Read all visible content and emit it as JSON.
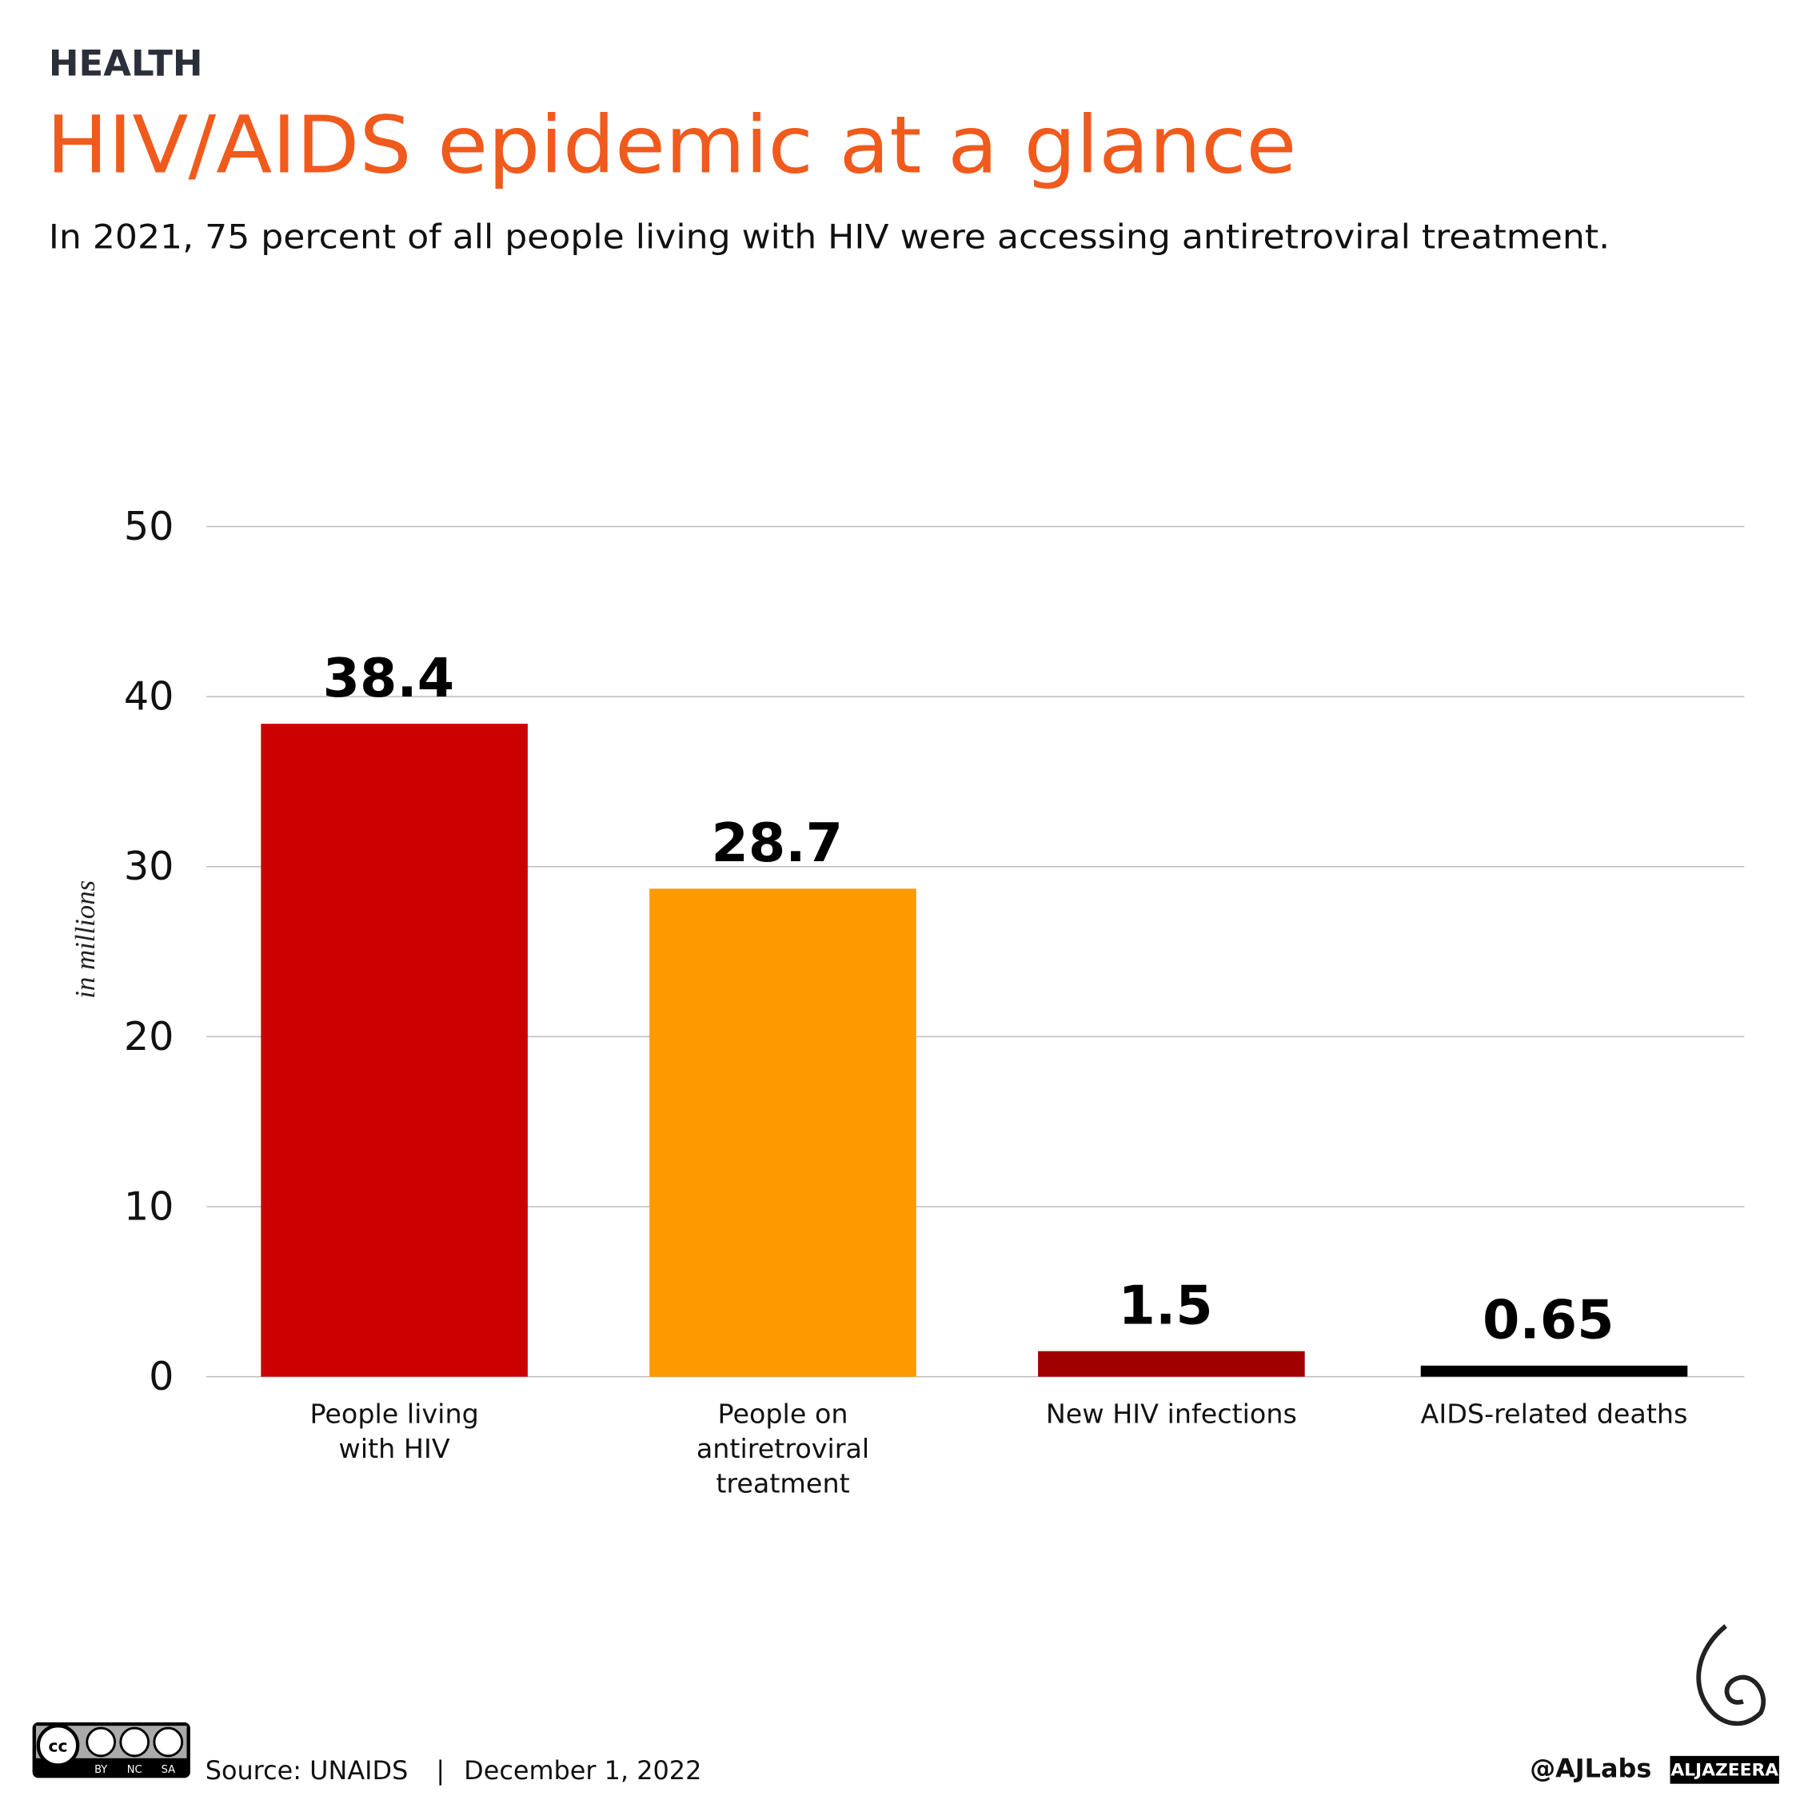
{
  "header": {
    "section": "HEALTH",
    "subtitle": "In 2021, 75 percent of all people living with HIV were accessing antiretroviral treatment."
  },
  "chart_data": {
    "type": "bar",
    "title": "HIV/AIDS epidemic at a glance",
    "y_label": "in millions",
    "categories": [
      "People living with HIV",
      "People on antiretroviral treatment",
      "New HIV infections",
      "AIDS-related deaths"
    ],
    "values": [
      38.4,
      28.7,
      1.5,
      0.65
    ],
    "colors": [
      "#cc0000",
      "#fd9a00",
      "#a00000",
      "#000000"
    ],
    "ylim": [
      0,
      50
    ],
    "yticks": [
      0,
      10,
      20,
      30,
      40,
      50
    ],
    "grid": true
  },
  "footer": {
    "license": [
      "BY",
      "NC",
      "SA"
    ],
    "source": "Source: UNAIDS",
    "separator": "|",
    "date": "December 1, 2022",
    "credit": "@AJLabs",
    "brand": "ALJAZEERA"
  }
}
